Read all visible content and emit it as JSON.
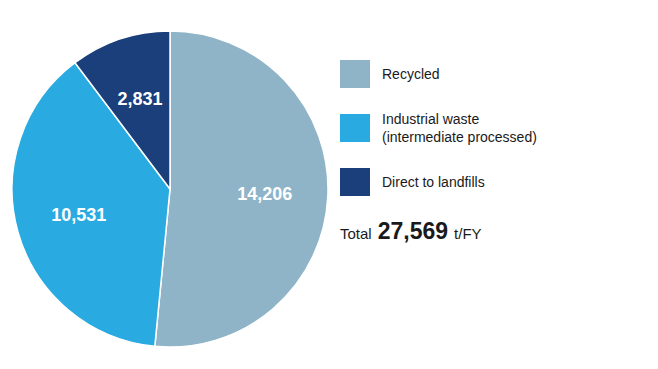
{
  "chart_data": {
    "type": "pie",
    "categories": [
      "Recycled",
      "Industrial waste\n(intermediate processed)",
      "Direct to landfills"
    ],
    "values": [
      14206,
      10531,
      2831
    ],
    "value_labels": [
      "14,206",
      "10,531",
      "2,831"
    ],
    "colors": [
      "#8fb4c8",
      "#29abe2",
      "#1a3f7a"
    ],
    "data_labels": true,
    "legend": "right",
    "annotations": [
      "Total",
      "27,569",
      "t/FY"
    ]
  }
}
